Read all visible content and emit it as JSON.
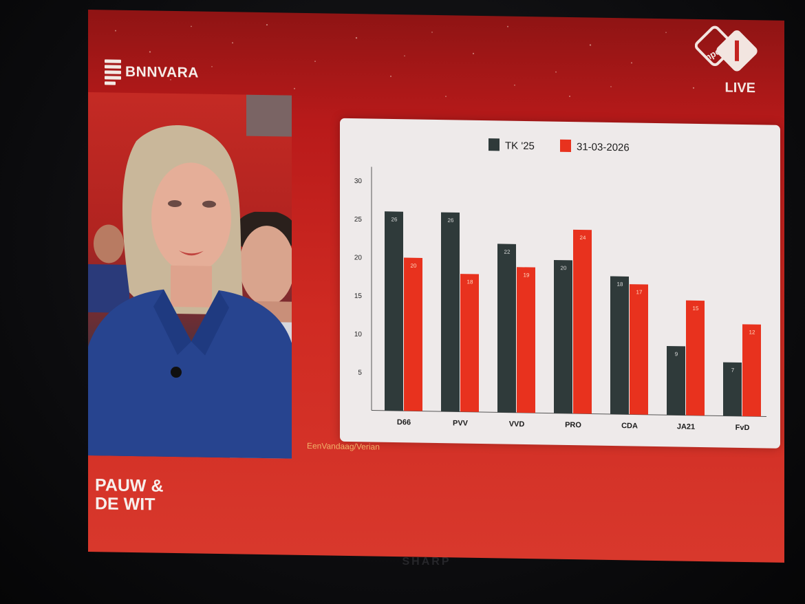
{
  "tv": {
    "brand": "SHARP"
  },
  "broadcaster": {
    "name": "BNNVARA"
  },
  "channel": {
    "logo": "npo-1-logo",
    "live_label": "LIVE"
  },
  "show": {
    "title_line1": "PAUW &",
    "title_line2": "DE WIT"
  },
  "source": "EenVandaag/Verian",
  "colors": {
    "series_a": "#2f3a3a",
    "series_b": "#e8321e",
    "background": "#c72620"
  },
  "chart_data": {
    "type": "bar",
    "categories": [
      "D66",
      "PVV",
      "VVD",
      "PRO",
      "CDA",
      "JA21",
      "FvD"
    ],
    "series": [
      {
        "name": "TK '25",
        "values": [
          26,
          26,
          22,
          20,
          18,
          9,
          7
        ]
      },
      {
        "name": "31-03-2026",
        "values": [
          20,
          18,
          19,
          24,
          17,
          15,
          12
        ]
      }
    ],
    "yticks": [
      5,
      10,
      15,
      20,
      25,
      30
    ],
    "ylim": [
      0,
      30
    ],
    "legend_position": "top",
    "grid": false,
    "data_labels": true
  }
}
